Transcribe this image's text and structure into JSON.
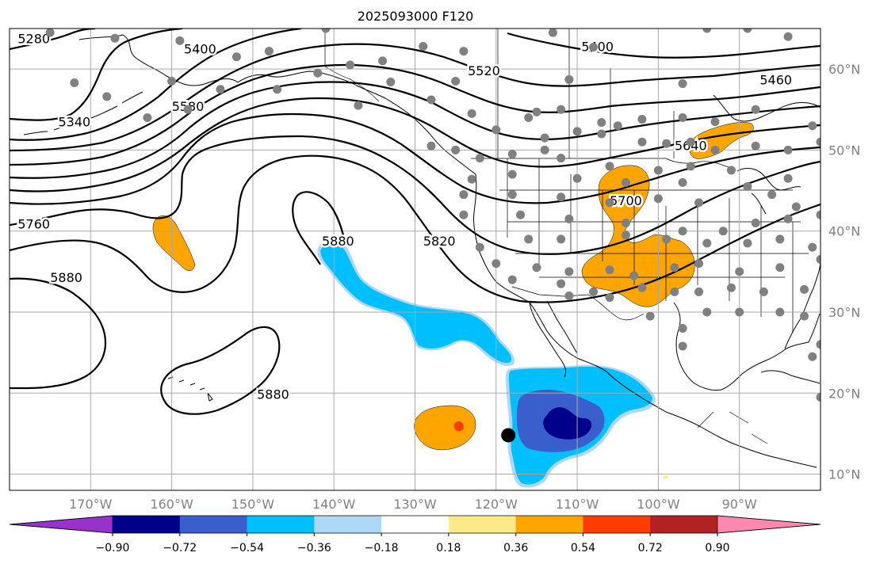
{
  "title": "2025093000 F120",
  "map": {
    "lon_range": [
      -180,
      -80
    ],
    "lat_range": [
      8,
      65
    ],
    "lat_ticks": [
      {
        "lat": 60,
        "label": "60°N"
      },
      {
        "lat": 50,
        "label": "50°N"
      },
      {
        "lat": 40,
        "label": "40°N"
      },
      {
        "lat": 30,
        "label": "30°N"
      },
      {
        "lat": 20,
        "label": "20°N"
      },
      {
        "lat": 10,
        "label": "10°N"
      }
    ],
    "lon_ticks": [
      {
        "lon": -170,
        "label": "170°W"
      },
      {
        "lon": -160,
        "label": "160°W"
      },
      {
        "lon": -150,
        "label": "150°W"
      },
      {
        "lon": -140,
        "label": "140°W"
      },
      {
        "lon": -130,
        "label": "130°W"
      },
      {
        "lon": -120,
        "label": "120°W"
      },
      {
        "lon": -110,
        "label": "110°W"
      },
      {
        "lon": -100,
        "label": "100°W"
      },
      {
        "lon": -90,
        "label": "90°W"
      }
    ],
    "contour_labels": [
      {
        "text": "5280",
        "lon": -177,
        "lat": 63.8
      },
      {
        "text": "5400",
        "lon": -156.5,
        "lat": 62.5
      },
      {
        "text": "5400",
        "lon": -107.5,
        "lat": 62.8
      },
      {
        "text": "5520",
        "lon": -121.5,
        "lat": 59.8
      },
      {
        "text": "5460",
        "lon": -85.5,
        "lat": 58.7
      },
      {
        "text": "5340",
        "lon": -172,
        "lat": 53.5
      },
      {
        "text": "5580",
        "lon": -158,
        "lat": 55.4
      },
      {
        "text": "5640",
        "lon": -96,
        "lat": 50.6
      },
      {
        "text": "5700",
        "lon": -104,
        "lat": 43.8
      },
      {
        "text": "5760",
        "lon": -177,
        "lat": 40.9
      },
      {
        "text": "5820",
        "lon": -127,
        "lat": 38.8
      },
      {
        "text": "5880",
        "lon": -139.5,
        "lat": 38.8
      },
      {
        "text": "5880",
        "lon": -173,
        "lat": 34.3
      },
      {
        "text": "5880",
        "lon": -147.5,
        "lat": 19.9
      }
    ],
    "stations": [
      [
        -175,
        64.5
      ],
      [
        -167,
        63.8
      ],
      [
        -159,
        63.5
      ],
      [
        -152,
        61.5
      ],
      [
        -148,
        62.2
      ],
      [
        -141,
        65.0
      ],
      [
        -138,
        60.5
      ],
      [
        -134,
        61.0
      ],
      [
        -129,
        62.8
      ],
      [
        -124,
        62.2
      ],
      [
        -113,
        64.5
      ],
      [
        -108,
        62.7
      ],
      [
        -94,
        65.0
      ],
      [
        -89,
        65.0
      ],
      [
        -84,
        64.0
      ],
      [
        -172,
        58.3
      ],
      [
        -160,
        58.5
      ],
      [
        -154,
        57.5
      ],
      [
        -147,
        57.5
      ],
      [
        -142,
        59.5
      ],
      [
        -133,
        58.4
      ],
      [
        -125,
        58.5
      ],
      [
        -111,
        58.7
      ],
      [
        -97,
        58.2
      ],
      [
        -88,
        55.0
      ],
      [
        -168,
        56.6
      ],
      [
        -163,
        54.0
      ],
      [
        -158,
        55.0
      ],
      [
        -137,
        55.5
      ],
      [
        -128,
        56.2
      ],
      [
        -123,
        54.5
      ],
      [
        -116,
        54.0
      ],
      [
        -115,
        54.7
      ],
      [
        -112,
        55.0
      ],
      [
        -107,
        53.4
      ],
      [
        -105,
        53.0
      ],
      [
        -102,
        53.8
      ],
      [
        -97,
        54.0
      ],
      [
        -93,
        53.5
      ],
      [
        -81,
        53.0
      ],
      [
        -120,
        52.5
      ],
      [
        -114,
        51.5
      ],
      [
        -110,
        52.3
      ],
      [
        -107,
        52.0
      ],
      [
        -102,
        51.0
      ],
      [
        -99,
        50.8
      ],
      [
        -96,
        51.0
      ],
      [
        -93,
        50.0
      ],
      [
        -88,
        50.5
      ],
      [
        -84,
        50.0
      ],
      [
        -80,
        51.0
      ],
      [
        -128,
        50.5
      ],
      [
        -125,
        50.0
      ],
      [
        -122,
        49.0
      ],
      [
        -118,
        49.5
      ],
      [
        -114,
        50.0
      ],
      [
        -112,
        49.0
      ],
      [
        -106,
        48.0
      ],
      [
        -100,
        47.5
      ],
      [
        -96,
        48.0
      ],
      [
        -91,
        47.5
      ],
      [
        -84,
        46.5
      ],
      [
        -123,
        46.4
      ],
      [
        -118,
        47.0
      ],
      [
        -110,
        46.5
      ],
      [
        -104,
        46.0
      ],
      [
        -97,
        46.0
      ],
      [
        -89,
        45.5
      ],
      [
        -86,
        44.5
      ],
      [
        -124,
        44.5
      ],
      [
        -118,
        44.5
      ],
      [
        -112,
        44.2
      ],
      [
        -106,
        43.5
      ],
      [
        -100,
        44.0
      ],
      [
        -95,
        43.5
      ],
      [
        -83,
        43.0
      ],
      [
        -124,
        42.0
      ],
      [
        -117,
        42.0
      ],
      [
        -111,
        41.5
      ],
      [
        -104,
        41.0
      ],
      [
        -97,
        40.0
      ],
      [
        -92,
        40.0
      ],
      [
        -88,
        41.0
      ],
      [
        -84,
        41.5
      ],
      [
        -80,
        42.0
      ],
      [
        -122,
        38.0
      ],
      [
        -116,
        39.0
      ],
      [
        -112,
        39.0
      ],
      [
        -104,
        39.5
      ],
      [
        -99,
        39.0
      ],
      [
        -94,
        38.5
      ],
      [
        -89,
        38.5
      ],
      [
        -85,
        39.0
      ],
      [
        -81,
        38.0
      ],
      [
        -120,
        36.0
      ],
      [
        -115,
        35.5
      ],
      [
        -111,
        35.0
      ],
      [
        -106,
        35.2
      ],
      [
        -103,
        34.5
      ],
      [
        -98,
        35.5
      ],
      [
        -95,
        36.0
      ],
      [
        -90,
        35.0
      ],
      [
        -85,
        35.5
      ],
      [
        -80,
        36.5
      ],
      [
        -118,
        34.0
      ],
      [
        -112,
        33.5
      ],
      [
        -108,
        32.5
      ],
      [
        -102,
        33.0
      ],
      [
        -98,
        32.5
      ],
      [
        -95,
        32.5
      ],
      [
        -91,
        33.0
      ],
      [
        -87,
        32.5
      ],
      [
        -82,
        32.8
      ],
      [
        -111,
        32.0
      ],
      [
        -106,
        31.8
      ],
      [
        -101,
        29.5
      ],
      [
        -97,
        28.0
      ],
      [
        -94,
        30.0
      ],
      [
        -90,
        30.0
      ],
      [
        -85,
        30.0
      ],
      [
        -82,
        29.5
      ],
      [
        -80,
        26.0
      ],
      [
        -97,
        25.8
      ],
      [
        -81,
        24.5
      ],
      [
        -80,
        19.5
      ]
    ],
    "marker": {
      "lon": -118.5,
      "lat": 14.8
    },
    "colors": {
      "purple": "#9932cc",
      "navy": "#00008b",
      "royal_blue": "#3a5fcd",
      "deep_sky_blue": "#00bfff",
      "light_blue": "#add8f8",
      "white": "#ffffff",
      "light_yellow": "#fce98a",
      "orange": "#ffa500",
      "orange_red": "#ff3c00",
      "firebrick": "#b22222",
      "pink": "#ff88b0"
    }
  },
  "colorbar": {
    "tick_labels": [
      "−0.90",
      "−0.72",
      "−0.54",
      "−0.36",
      "−0.18",
      "0.18",
      "0.36",
      "0.54",
      "0.72",
      "0.90"
    ],
    "bins": [
      "#9932cc",
      "#00008b",
      "#3a5fcd",
      "#00bfff",
      "#add8f8",
      "#ffffff",
      "#fce98a",
      "#ffa500",
      "#ff3c00",
      "#b22222",
      "#ff88b0"
    ]
  }
}
